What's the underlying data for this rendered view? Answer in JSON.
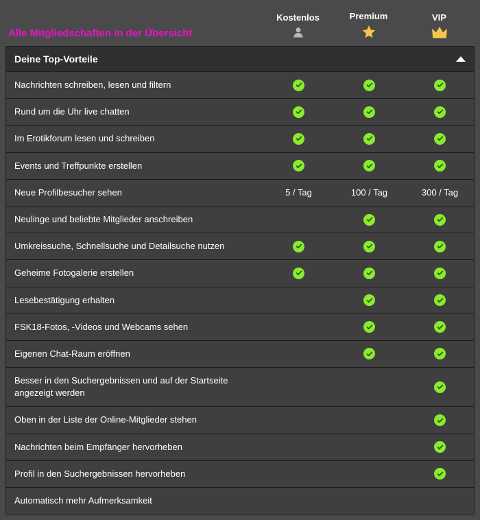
{
  "title": "Alle Mitgliedschaften in der Übersicht",
  "tiers": [
    {
      "label": "Kostenlos",
      "icon": "person"
    },
    {
      "label": "Premium",
      "icon": "star"
    },
    {
      "label": "VIP",
      "icon": "crown"
    }
  ],
  "section_header": "Deine Top-Vorteile",
  "colors": {
    "title": "#e815c8",
    "check": "#8bea2f",
    "star": "#f7c54a",
    "crown": "#f7c54a",
    "person": "#b8b8b8",
    "bg": "#4a4a4a",
    "row_bg": "#3f3f3f",
    "header_bg": "#303030",
    "border": "#1c1c1c"
  },
  "features": [
    {
      "label": "Nachrichten schreiben, lesen und filtern",
      "values": [
        "check",
        "check",
        "check"
      ]
    },
    {
      "label": "Rund um die Uhr live chatten",
      "values": [
        "check",
        "check",
        "check"
      ]
    },
    {
      "label": "Im Erotikforum lesen und schreiben",
      "values": [
        "check",
        "check",
        "check"
      ]
    },
    {
      "label": "Events und Treffpunkte erstellen",
      "values": [
        "check",
        "check",
        "check"
      ]
    },
    {
      "label": "Neue Profilbesucher sehen",
      "values": [
        "5 / Tag",
        "100 / Tag",
        "300 / Tag"
      ]
    },
    {
      "label": "Neulinge und beliebte Mitglieder anschreiben",
      "values": [
        "",
        "check",
        "check"
      ]
    },
    {
      "label": "Umkreissuche, Schnellsuche und Detailsuche nutzen",
      "values": [
        "check",
        "check",
        "check"
      ]
    },
    {
      "label": "Geheime Fotogalerie erstellen",
      "values": [
        "check",
        "check",
        "check"
      ]
    },
    {
      "label": "Lesebestätigung erhalten",
      "values": [
        "",
        "check",
        "check"
      ]
    },
    {
      "label": "FSK18-Fotos, -Videos und Webcams sehen",
      "values": [
        "",
        "check",
        "check"
      ]
    },
    {
      "label": "Eigenen Chat-Raum eröffnen",
      "values": [
        "",
        "check",
        "check"
      ]
    },
    {
      "label": "Besser in den Suchergebnissen und auf der Startseite angezeigt werden",
      "values": [
        "",
        "",
        "check"
      ]
    },
    {
      "label": "Oben in der Liste der Online-Mitglieder stehen",
      "values": [
        "",
        "",
        "check"
      ]
    },
    {
      "label": "Nachrichten beim Empfänger hervorheben",
      "values": [
        "",
        "",
        "check"
      ]
    },
    {
      "label": "Profil in den Suchergebnissen hervorheben",
      "values": [
        "",
        "",
        "check"
      ]
    },
    {
      "label": "Automatisch mehr Aufmerksamkeit",
      "values": [
        "",
        "",
        ""
      ]
    }
  ]
}
